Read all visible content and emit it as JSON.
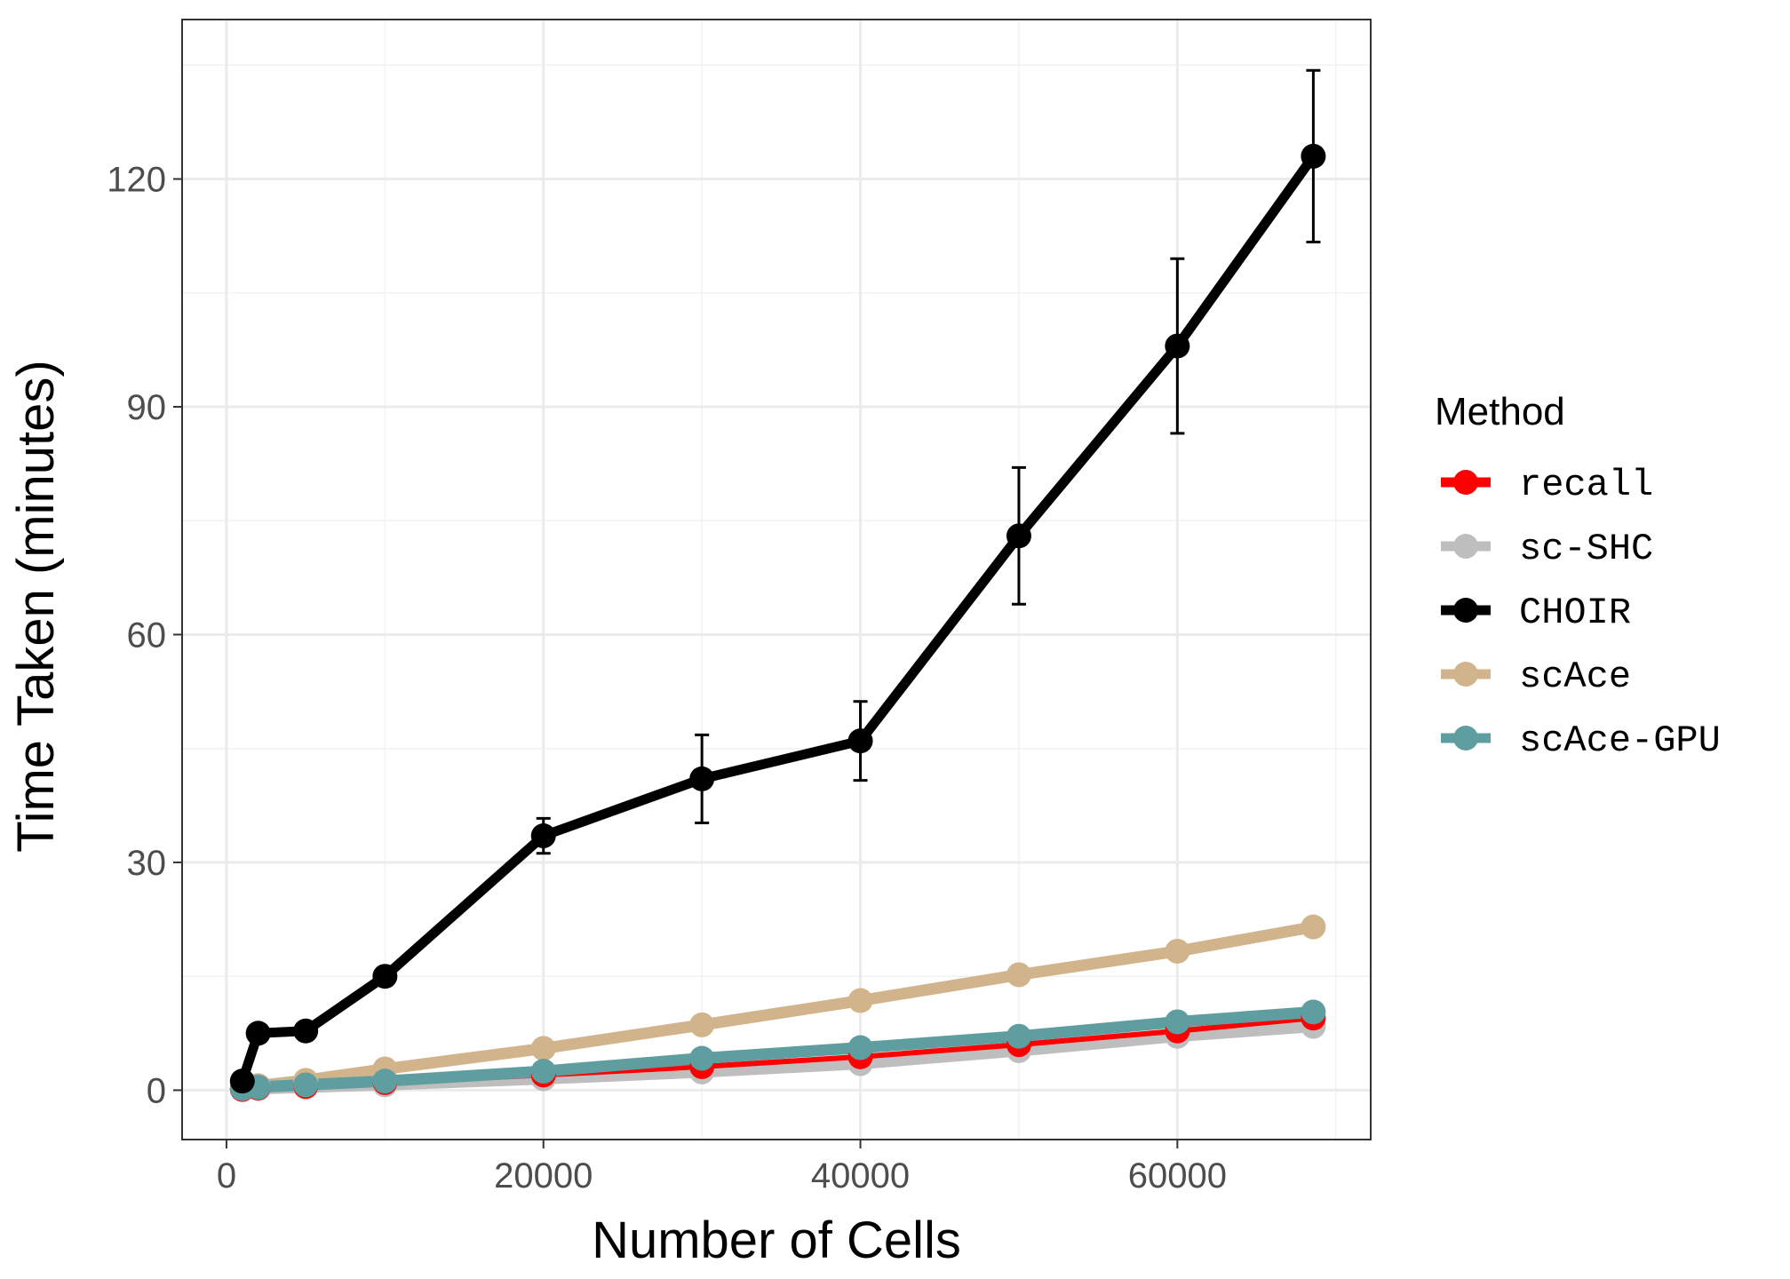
{
  "chart_data": {
    "type": "line",
    "xlabel": "Number of Cells",
    "ylabel": "Time Taken (minutes)",
    "xlim": [
      -2800,
      72200
    ],
    "ylim": [
      -6.5,
      141
    ],
    "xticks": [
      0,
      20000,
      40000,
      60000
    ],
    "yticks": [
      0,
      30,
      60,
      90,
      120
    ],
    "grid": true,
    "legend": {
      "title": "Method",
      "placement": "right"
    },
    "series": [
      {
        "name": "scAce",
        "color": "#D2B48C",
        "x": [
          1000,
          2000,
          5000,
          10000,
          20000,
          30000,
          40000,
          50000,
          60000,
          68579
        ],
        "y": [
          0.3,
          0.6,
          1.3,
          2.8,
          5.5,
          8.6,
          11.8,
          15.2,
          18.3,
          21.5
        ]
      },
      {
        "name": "sc-SHC",
        "color": "#BEBEBE",
        "x": [
          1000,
          2000,
          5000,
          10000,
          20000,
          30000,
          40000,
          50000,
          60000,
          68579
        ],
        "y": [
          0.1,
          0.2,
          0.4,
          0.7,
          1.5,
          2.4,
          3.5,
          5.2,
          7.1,
          8.4
        ]
      },
      {
        "name": "recall",
        "color": "#FF0000",
        "x": [
          1000,
          2000,
          5000,
          10000,
          20000,
          30000,
          40000,
          50000,
          60000,
          68579
        ],
        "y": [
          0.1,
          0.3,
          0.5,
          1.0,
          2.0,
          3.1,
          4.4,
          6.0,
          7.8,
          9.5
        ],
        "err": [
          0.1,
          0.1,
          0.2,
          0.3,
          0.5,
          0.7,
          0.8,
          0.9,
          1.1,
          1.5
        ]
      },
      {
        "name": "scAce-GPU",
        "color": "#5F9EA0",
        "x": [
          1000,
          2000,
          5000,
          10000,
          20000,
          30000,
          40000,
          50000,
          60000,
          68579
        ],
        "y": [
          0.2,
          0.4,
          0.7,
          1.2,
          2.5,
          4.2,
          5.6,
          7.1,
          9.0,
          10.3
        ]
      },
      {
        "name": "CHOIR",
        "color": "#000000",
        "x": [
          1000,
          2000,
          5000,
          10000,
          20000,
          30000,
          40000,
          50000,
          60000,
          68579
        ],
        "y": [
          1.2,
          7.5,
          7.8,
          15.0,
          33.5,
          41.0,
          46.0,
          73.0,
          98.0,
          123.0
        ],
        "err": [
          0.5,
          0.8,
          0.9,
          1.0,
          2.3,
          5.8,
          5.2,
          9.0,
          11.5,
          11.3
        ]
      }
    ],
    "legend_order": [
      "recall",
      "sc-SHC",
      "CHOIR",
      "scAce",
      "scAce-GPU"
    ]
  }
}
